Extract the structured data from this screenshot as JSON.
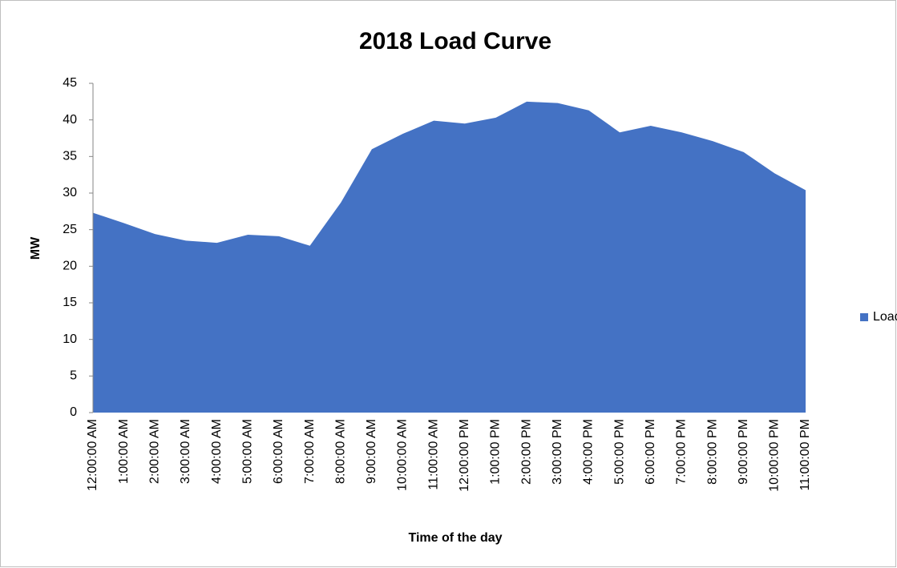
{
  "chart_data": {
    "type": "area",
    "title": "2018 Load Curve",
    "x_label": "Time of the day",
    "y_label": "MW",
    "categories": [
      "12:00:00 AM",
      "1:00:00 AM",
      "2:00:00 AM",
      "3:00:00 AM",
      "4:00:00 AM",
      "5:00:00 AM",
      "6:00:00 AM",
      "7:00:00 AM",
      "8:00:00 AM",
      "9:00:00 AM",
      "10:00:00 AM",
      "11:00:00 AM",
      "12:00:00 PM",
      "1:00:00 PM",
      "2:00:00 PM",
      "3:00:00 PM",
      "4:00:00 PM",
      "5:00:00 PM",
      "6:00:00 PM",
      "7:00:00 PM",
      "8:00:00 PM",
      "9:00:00 PM",
      "10:00:00 PM",
      "11:00:00 PM"
    ],
    "series": [
      {
        "name": "Load",
        "color": "#4472c4",
        "values": [
          27.3,
          25.9,
          24.4,
          23.5,
          23.2,
          24.3,
          24.1,
          22.8,
          28.7,
          36.0,
          38.1,
          39.9,
          39.5,
          40.3,
          42.5,
          42.3,
          41.3,
          38.3,
          39.2,
          38.3,
          37.1,
          35.6,
          32.7,
          30.4
        ]
      }
    ],
    "ylim": [
      0,
      45
    ],
    "yticks": [
      0,
      5,
      10,
      15,
      20,
      25,
      30,
      35,
      40,
      45
    ],
    "grid": false,
    "legend": "right"
  }
}
